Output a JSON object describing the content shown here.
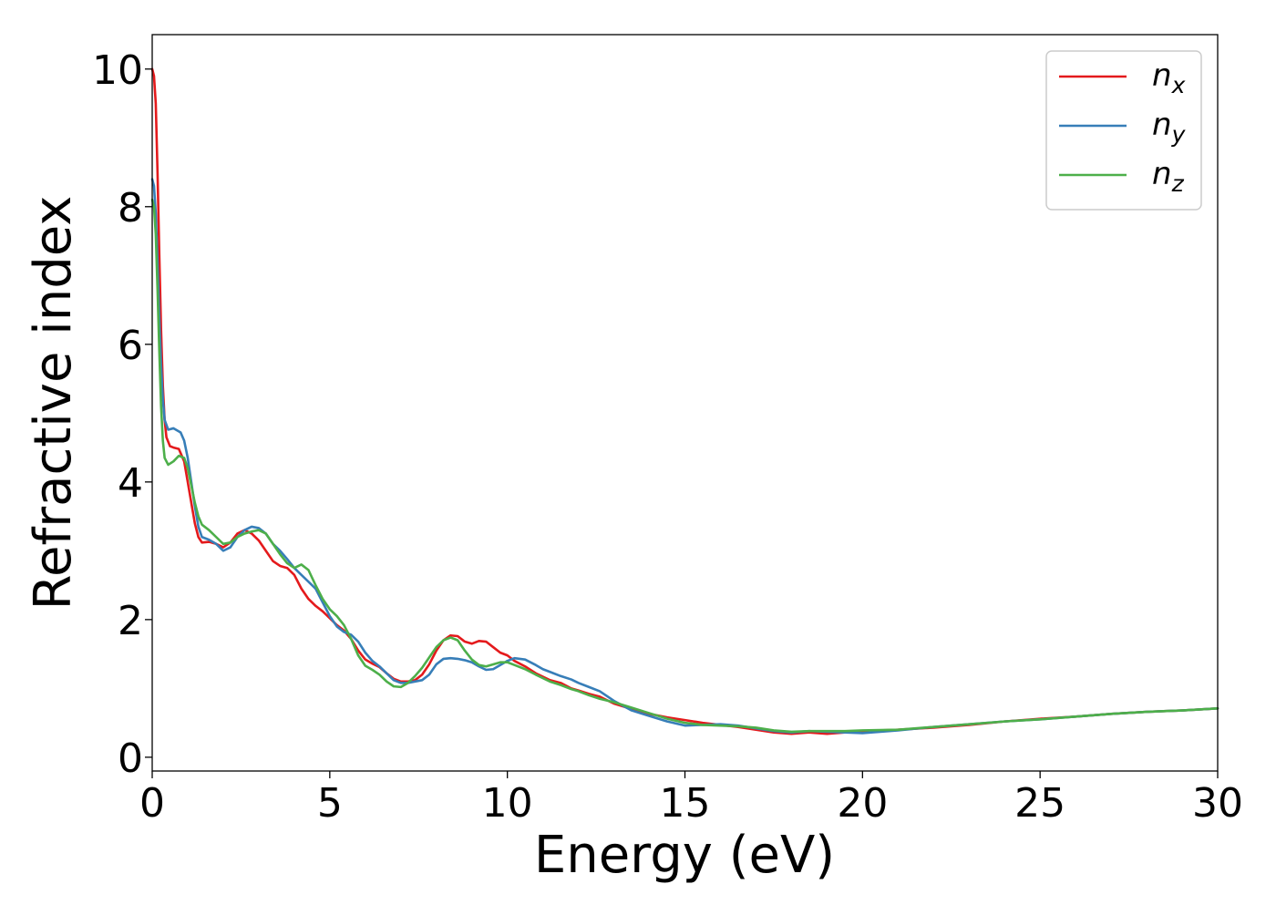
{
  "chart_data": {
    "type": "line",
    "title": "",
    "xlabel": "Energy (eV)",
    "ylabel": "Refractive index",
    "xlim": [
      0,
      30
    ],
    "ylim": [
      -0.2,
      10.5
    ],
    "x_ticks": [
      0,
      5,
      10,
      15,
      20,
      25,
      30
    ],
    "y_ticks": [
      0,
      2,
      4,
      6,
      8,
      10
    ],
    "grid": false,
    "legend_position": "top-right",
    "series": [
      {
        "name": "n",
        "subscript": "x",
        "color": "#e41a1c",
        "points": [
          [
            0.0,
            10.0
          ],
          [
            0.05,
            9.9
          ],
          [
            0.1,
            9.5
          ],
          [
            0.15,
            8.5
          ],
          [
            0.2,
            7.3
          ],
          [
            0.25,
            6.2
          ],
          [
            0.3,
            5.4
          ],
          [
            0.35,
            4.9
          ],
          [
            0.4,
            4.65
          ],
          [
            0.5,
            4.52
          ],
          [
            0.6,
            4.5
          ],
          [
            0.75,
            4.48
          ],
          [
            0.9,
            4.3
          ],
          [
            1.0,
            4.0
          ],
          [
            1.1,
            3.7
          ],
          [
            1.2,
            3.4
          ],
          [
            1.3,
            3.2
          ],
          [
            1.4,
            3.12
          ],
          [
            1.6,
            3.13
          ],
          [
            1.8,
            3.1
          ],
          [
            2.0,
            3.05
          ],
          [
            2.2,
            3.12
          ],
          [
            2.4,
            3.25
          ],
          [
            2.6,
            3.3
          ],
          [
            2.8,
            3.25
          ],
          [
            3.0,
            3.15
          ],
          [
            3.2,
            3.0
          ],
          [
            3.4,
            2.85
          ],
          [
            3.6,
            2.78
          ],
          [
            3.8,
            2.75
          ],
          [
            4.0,
            2.65
          ],
          [
            4.2,
            2.45
          ],
          [
            4.4,
            2.3
          ],
          [
            4.6,
            2.2
          ],
          [
            4.8,
            2.12
          ],
          [
            5.0,
            2.02
          ],
          [
            5.2,
            1.92
          ],
          [
            5.4,
            1.84
          ],
          [
            5.6,
            1.72
          ],
          [
            5.8,
            1.55
          ],
          [
            6.0,
            1.42
          ],
          [
            6.2,
            1.36
          ],
          [
            6.4,
            1.31
          ],
          [
            6.6,
            1.22
          ],
          [
            6.8,
            1.14
          ],
          [
            7.0,
            1.1
          ],
          [
            7.2,
            1.1
          ],
          [
            7.4,
            1.12
          ],
          [
            7.6,
            1.2
          ],
          [
            7.8,
            1.35
          ],
          [
            8.0,
            1.55
          ],
          [
            8.2,
            1.7
          ],
          [
            8.4,
            1.77
          ],
          [
            8.6,
            1.76
          ],
          [
            8.8,
            1.68
          ],
          [
            9.0,
            1.65
          ],
          [
            9.2,
            1.69
          ],
          [
            9.4,
            1.68
          ],
          [
            9.6,
            1.6
          ],
          [
            9.8,
            1.52
          ],
          [
            10.0,
            1.48
          ],
          [
            10.2,
            1.4
          ],
          [
            10.5,
            1.32
          ],
          [
            10.8,
            1.22
          ],
          [
            11.0,
            1.17
          ],
          [
            11.2,
            1.12
          ],
          [
            11.5,
            1.08
          ],
          [
            11.8,
            1.0
          ],
          [
            12.0,
            0.97
          ],
          [
            12.3,
            0.92
          ],
          [
            12.6,
            0.88
          ],
          [
            13.0,
            0.78
          ],
          [
            13.5,
            0.7
          ],
          [
            14.0,
            0.63
          ],
          [
            14.5,
            0.58
          ],
          [
            15.0,
            0.54
          ],
          [
            15.5,
            0.5
          ],
          [
            16.0,
            0.47
          ],
          [
            16.5,
            0.44
          ],
          [
            17.0,
            0.4
          ],
          [
            17.5,
            0.36
          ],
          [
            18.0,
            0.34
          ],
          [
            18.5,
            0.36
          ],
          [
            19.0,
            0.34
          ],
          [
            19.5,
            0.36
          ],
          [
            20.0,
            0.38
          ],
          [
            21.0,
            0.4
          ],
          [
            22.0,
            0.43
          ],
          [
            23.0,
            0.47
          ],
          [
            24.0,
            0.52
          ],
          [
            25.0,
            0.56
          ],
          [
            26.0,
            0.59
          ],
          [
            27.0,
            0.63
          ],
          [
            28.0,
            0.66
          ],
          [
            29.0,
            0.68
          ],
          [
            30.0,
            0.71
          ]
        ]
      },
      {
        "name": "n",
        "subscript": "y",
        "color": "#377eb8",
        "points": [
          [
            0.0,
            8.4
          ],
          [
            0.05,
            8.3
          ],
          [
            0.1,
            7.9
          ],
          [
            0.15,
            7.2
          ],
          [
            0.2,
            6.4
          ],
          [
            0.25,
            5.7
          ],
          [
            0.3,
            5.2
          ],
          [
            0.35,
            4.9
          ],
          [
            0.45,
            4.76
          ],
          [
            0.6,
            4.78
          ],
          [
            0.8,
            4.72
          ],
          [
            0.9,
            4.6
          ],
          [
            1.0,
            4.35
          ],
          [
            1.1,
            4.0
          ],
          [
            1.2,
            3.65
          ],
          [
            1.3,
            3.35
          ],
          [
            1.4,
            3.2
          ],
          [
            1.6,
            3.16
          ],
          [
            1.8,
            3.1
          ],
          [
            2.0,
            3.0
          ],
          [
            2.2,
            3.05
          ],
          [
            2.4,
            3.2
          ],
          [
            2.6,
            3.3
          ],
          [
            2.8,
            3.35
          ],
          [
            3.0,
            3.33
          ],
          [
            3.2,
            3.25
          ],
          [
            3.4,
            3.1
          ],
          [
            3.6,
            3.0
          ],
          [
            3.8,
            2.88
          ],
          [
            4.0,
            2.75
          ],
          [
            4.2,
            2.65
          ],
          [
            4.4,
            2.55
          ],
          [
            4.6,
            2.45
          ],
          [
            4.8,
            2.25
          ],
          [
            5.0,
            2.05
          ],
          [
            5.2,
            1.9
          ],
          [
            5.4,
            1.82
          ],
          [
            5.6,
            1.78
          ],
          [
            5.8,
            1.68
          ],
          [
            6.0,
            1.52
          ],
          [
            6.2,
            1.4
          ],
          [
            6.4,
            1.32
          ],
          [
            6.6,
            1.22
          ],
          [
            6.8,
            1.12
          ],
          [
            7.0,
            1.08
          ],
          [
            7.2,
            1.08
          ],
          [
            7.4,
            1.1
          ],
          [
            7.6,
            1.12
          ],
          [
            7.8,
            1.2
          ],
          [
            8.0,
            1.35
          ],
          [
            8.2,
            1.43
          ],
          [
            8.4,
            1.44
          ],
          [
            8.6,
            1.43
          ],
          [
            8.8,
            1.41
          ],
          [
            9.0,
            1.38
          ],
          [
            9.2,
            1.32
          ],
          [
            9.4,
            1.27
          ],
          [
            9.6,
            1.28
          ],
          [
            9.8,
            1.34
          ],
          [
            10.0,
            1.4
          ],
          [
            10.2,
            1.44
          ],
          [
            10.5,
            1.42
          ],
          [
            10.8,
            1.34
          ],
          [
            11.0,
            1.28
          ],
          [
            11.2,
            1.24
          ],
          [
            11.5,
            1.18
          ],
          [
            11.8,
            1.13
          ],
          [
            12.0,
            1.08
          ],
          [
            12.3,
            1.02
          ],
          [
            12.6,
            0.96
          ],
          [
            13.0,
            0.82
          ],
          [
            13.5,
            0.68
          ],
          [
            14.0,
            0.6
          ],
          [
            14.5,
            0.52
          ],
          [
            15.0,
            0.46
          ],
          [
            15.5,
            0.47
          ],
          [
            16.0,
            0.48
          ],
          [
            16.5,
            0.46
          ],
          [
            17.0,
            0.42
          ],
          [
            17.5,
            0.38
          ],
          [
            18.0,
            0.36
          ],
          [
            18.5,
            0.38
          ],
          [
            19.0,
            0.37
          ],
          [
            19.5,
            0.36
          ],
          [
            20.0,
            0.35
          ],
          [
            21.0,
            0.39
          ],
          [
            22.0,
            0.44
          ],
          [
            23.0,
            0.48
          ],
          [
            24.0,
            0.52
          ],
          [
            25.0,
            0.55
          ],
          [
            26.0,
            0.59
          ],
          [
            27.0,
            0.63
          ],
          [
            28.0,
            0.66
          ],
          [
            29.0,
            0.68
          ],
          [
            30.0,
            0.71
          ]
        ]
      },
      {
        "name": "n",
        "subscript": "z",
        "color": "#4daf4a",
        "points": [
          [
            0.0,
            8.1
          ],
          [
            0.05,
            8.0
          ],
          [
            0.1,
            7.6
          ],
          [
            0.15,
            6.8
          ],
          [
            0.2,
            5.9
          ],
          [
            0.25,
            5.1
          ],
          [
            0.3,
            4.6
          ],
          [
            0.35,
            4.35
          ],
          [
            0.45,
            4.25
          ],
          [
            0.6,
            4.3
          ],
          [
            0.75,
            4.38
          ],
          [
            0.9,
            4.35
          ],
          [
            1.0,
            4.2
          ],
          [
            1.1,
            3.95
          ],
          [
            1.2,
            3.7
          ],
          [
            1.3,
            3.5
          ],
          [
            1.4,
            3.38
          ],
          [
            1.6,
            3.3
          ],
          [
            1.8,
            3.2
          ],
          [
            2.0,
            3.1
          ],
          [
            2.2,
            3.12
          ],
          [
            2.4,
            3.2
          ],
          [
            2.6,
            3.25
          ],
          [
            2.8,
            3.28
          ],
          [
            3.0,
            3.3
          ],
          [
            3.2,
            3.25
          ],
          [
            3.4,
            3.1
          ],
          [
            3.6,
            2.95
          ],
          [
            3.8,
            2.82
          ],
          [
            4.0,
            2.75
          ],
          [
            4.2,
            2.8
          ],
          [
            4.4,
            2.72
          ],
          [
            4.6,
            2.5
          ],
          [
            4.8,
            2.3
          ],
          [
            5.0,
            2.15
          ],
          [
            5.2,
            2.05
          ],
          [
            5.4,
            1.92
          ],
          [
            5.6,
            1.72
          ],
          [
            5.8,
            1.48
          ],
          [
            6.0,
            1.33
          ],
          [
            6.2,
            1.27
          ],
          [
            6.4,
            1.2
          ],
          [
            6.6,
            1.1
          ],
          [
            6.8,
            1.03
          ],
          [
            7.0,
            1.02
          ],
          [
            7.2,
            1.08
          ],
          [
            7.4,
            1.18
          ],
          [
            7.6,
            1.3
          ],
          [
            7.8,
            1.45
          ],
          [
            8.0,
            1.6
          ],
          [
            8.2,
            1.7
          ],
          [
            8.4,
            1.74
          ],
          [
            8.6,
            1.7
          ],
          [
            8.8,
            1.55
          ],
          [
            9.0,
            1.42
          ],
          [
            9.2,
            1.34
          ],
          [
            9.4,
            1.32
          ],
          [
            9.6,
            1.35
          ],
          [
            9.8,
            1.38
          ],
          [
            10.0,
            1.38
          ],
          [
            10.2,
            1.34
          ],
          [
            10.5,
            1.28
          ],
          [
            10.8,
            1.2
          ],
          [
            11.0,
            1.15
          ],
          [
            11.2,
            1.1
          ],
          [
            11.5,
            1.05
          ],
          [
            11.8,
            0.99
          ],
          [
            12.0,
            0.96
          ],
          [
            12.3,
            0.9
          ],
          [
            12.6,
            0.85
          ],
          [
            13.0,
            0.8
          ],
          [
            13.5,
            0.72
          ],
          [
            14.0,
            0.64
          ],
          [
            14.5,
            0.56
          ],
          [
            15.0,
            0.5
          ],
          [
            15.5,
            0.47
          ],
          [
            16.0,
            0.46
          ],
          [
            16.5,
            0.45
          ],
          [
            17.0,
            0.43
          ],
          [
            17.5,
            0.39
          ],
          [
            18.0,
            0.37
          ],
          [
            18.5,
            0.38
          ],
          [
            19.0,
            0.38
          ],
          [
            19.5,
            0.38
          ],
          [
            20.0,
            0.39
          ],
          [
            21.0,
            0.4
          ],
          [
            22.0,
            0.44
          ],
          [
            23.0,
            0.48
          ],
          [
            24.0,
            0.52
          ],
          [
            25.0,
            0.55
          ],
          [
            26.0,
            0.59
          ],
          [
            27.0,
            0.63
          ],
          [
            28.0,
            0.66
          ],
          [
            29.0,
            0.68
          ],
          [
            30.0,
            0.71
          ]
        ]
      }
    ]
  }
}
